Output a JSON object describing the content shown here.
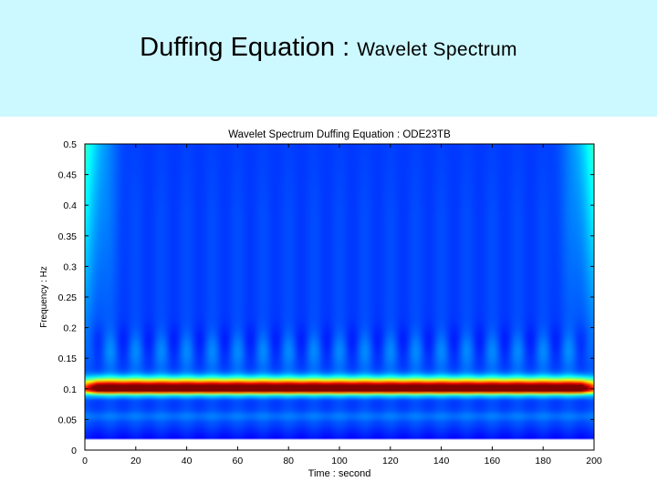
{
  "slide": {
    "title_main": "Duffing Equation : ",
    "title_sub": "Wavelet Spectrum"
  },
  "chart_data": {
    "type": "heatmap",
    "title": "Wavelet Spectrum Duffing Equation : ODE23TB",
    "xlabel": "Time : second",
    "ylabel": "Frequency : Hz",
    "xlim": [
      0,
      200
    ],
    "ylim": [
      0,
      0.5
    ],
    "xticks": [
      "0",
      "20",
      "40",
      "60",
      "80",
      "100",
      "120",
      "140",
      "160",
      "180",
      "200"
    ],
    "yticks": [
      "0",
      "0.05",
      "0.1",
      "0.15",
      "0.2",
      "0.25",
      "0.3",
      "0.35",
      "0.4",
      "0.45",
      "0.5"
    ],
    "data_time_range": [
      0,
      200
    ],
    "data_freq_range": [
      0.018,
      0.5
    ],
    "dominant_band_hz": 0.1,
    "dominant_band_time_range": [
      5,
      195
    ],
    "secondary_band_hz": 0.055,
    "ripple_period_s": 10,
    "colormap": "jet",
    "colors": {
      "low": "#00008f",
      "high": "#800000",
      "header_bg": "#ccf8ff"
    }
  }
}
